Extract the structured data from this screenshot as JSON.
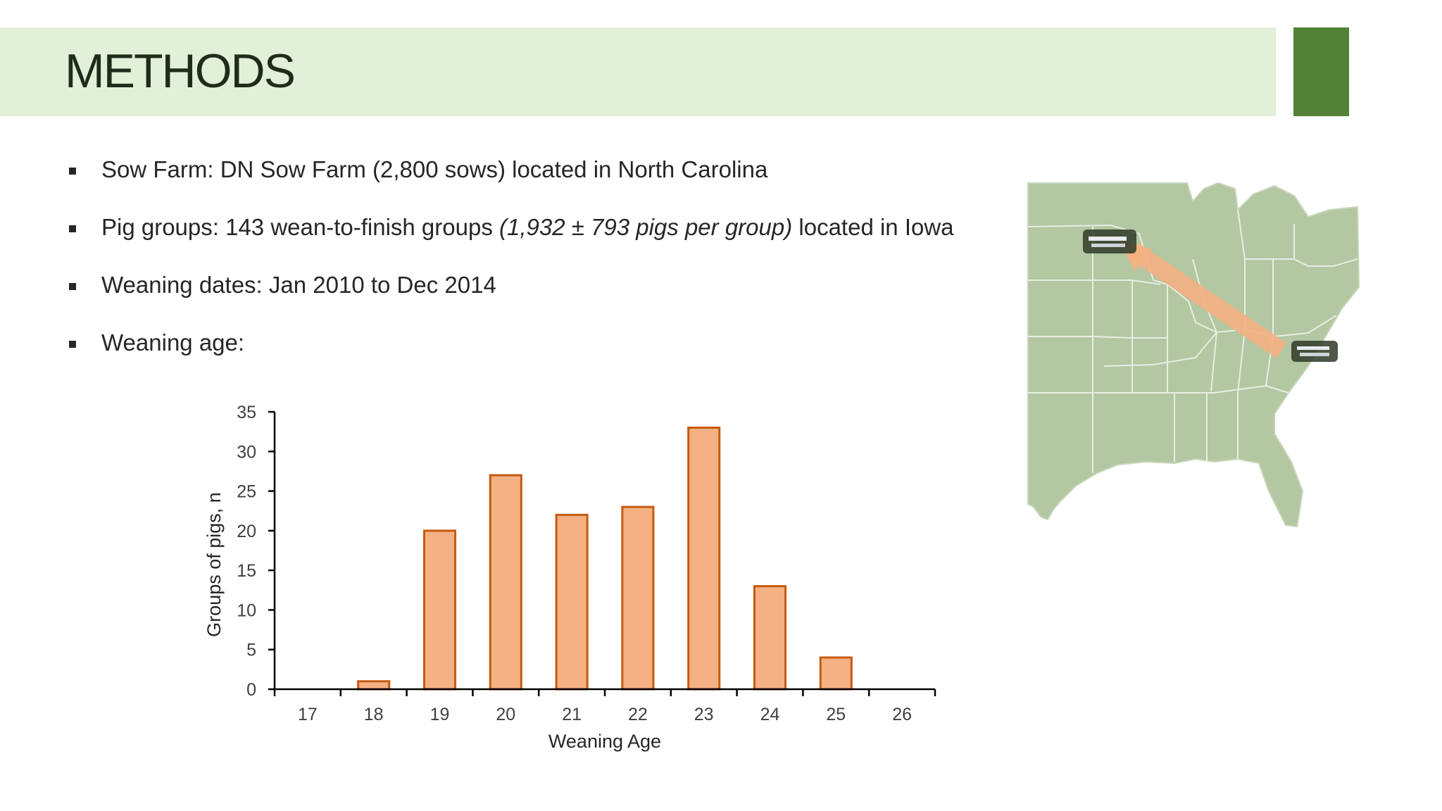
{
  "slide": {
    "title": "METHODS",
    "colors": {
      "band": "#e2efd9",
      "accent": "#538135",
      "bar_fill": "#f4b183",
      "bar_stroke": "#c55a11"
    }
  },
  "bullets": [
    {
      "text": "Sow Farm: DN Sow Farm (2,800 sows) located in North Carolina"
    },
    {
      "pre": "Pig groups: 143 wean-to-finish groups ",
      "italic": "(1,932 ± 793 pigs per group)",
      "post": " located in Iowa"
    },
    {
      "text": "Weaning dates: Jan 2010 to Dec 2014"
    },
    {
      "text": "Weaning age:"
    }
  ],
  "map": {
    "icon": "us-map-with-farm-route-arrow",
    "from": "North Carolina",
    "to": "Iowa"
  },
  "chart_data": {
    "type": "bar",
    "categories": [
      "17",
      "18",
      "19",
      "20",
      "21",
      "22",
      "23",
      "24",
      "25",
      "26"
    ],
    "values": [
      0,
      1,
      20,
      27,
      22,
      23,
      33,
      13,
      4,
      0
    ],
    "xlabel": "Weaning Age",
    "ylabel": "Groups of pigs, n",
    "ylim": [
      0,
      35
    ],
    "yticks": [
      0,
      5,
      10,
      15,
      20,
      25,
      30,
      35
    ],
    "grid": false,
    "legend": "none"
  }
}
